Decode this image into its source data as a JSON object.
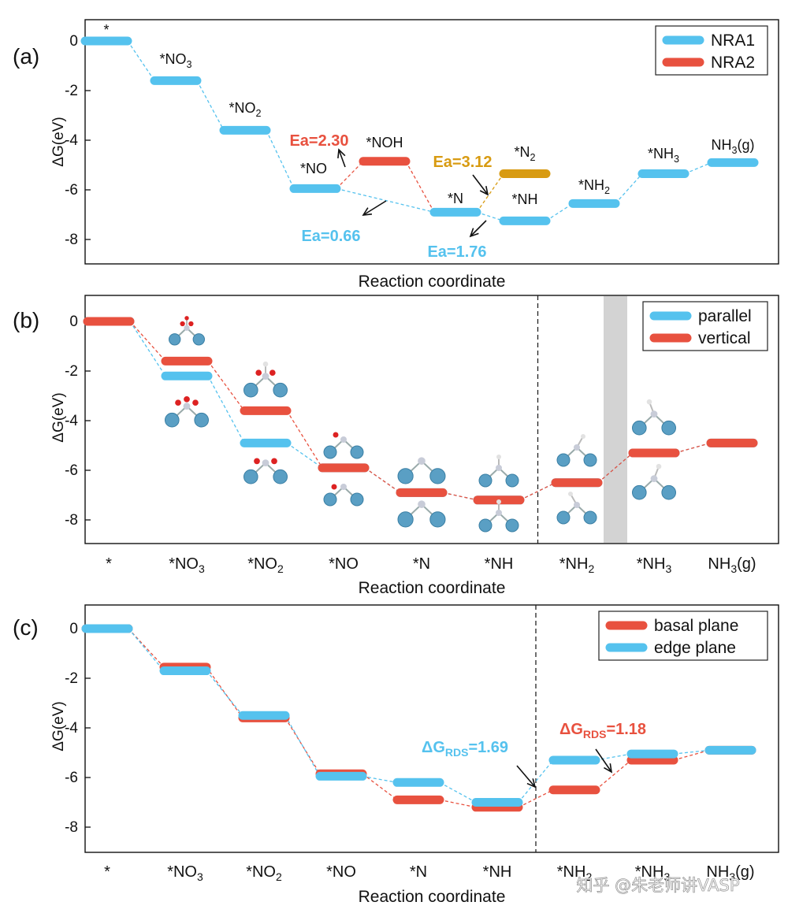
{
  "colors": {
    "blue": "#55c2ee",
    "red": "#e8513f",
    "gold": "#d89b12",
    "axis": "#111111",
    "shade": "#d3d3d3"
  },
  "watermark": "知乎 @朱老师讲VASP",
  "chart_data": [
    {
      "type": "line",
      "panel": "(a)",
      "ylabel": "ΔG(eV)",
      "xlabel": "Reaction coordinate",
      "ylim": [
        -9,
        0.6
      ],
      "yticks": [
        0,
        -2,
        -4,
        -6,
        -8
      ],
      "categories": [
        "*",
        "*NO3",
        "*NO2",
        "*NO",
        "*NOH",
        "*N",
        "*N2",
        "*NH",
        "*NH2",
        "*NH3",
        "NH3(g)"
      ],
      "series": [
        {
          "name": "NRA1",
          "color": "blue",
          "points": [
            [
              0,
              0
            ],
            [
              1,
              -1.6
            ],
            [
              2,
              -3.6
            ],
            [
              3,
              -5.95
            ],
            [
              5,
              -6.9
            ],
            [
              7,
              -7.25
            ],
            [
              8,
              -6.55
            ],
            [
              9,
              -5.35
            ],
            [
              10,
              -4.9
            ]
          ]
        },
        {
          "name": "NRA2",
          "color": "red",
          "points": [
            [
              3,
              -5.95
            ],
            [
              4,
              -4.85
            ],
            [
              5,
              -6.9
            ]
          ]
        },
        {
          "name": "N2",
          "color": "gold",
          "points": [
            [
              5,
              -6.9
            ],
            [
              6,
              -5.35
            ]
          ]
        }
      ],
      "state_labels": [
        {
          "name": "*",
          "main": "*",
          "sub": "",
          "rest": ""
        },
        {
          "name": "*NO3",
          "main": "*NO",
          "sub": "3",
          "rest": ""
        },
        {
          "name": "*NO2",
          "main": "*NO",
          "sub": "2",
          "rest": ""
        },
        {
          "name": "*NO",
          "main": "*NO",
          "sub": "",
          "rest": ""
        },
        {
          "name": "*NOH",
          "main": "*NOH",
          "sub": "",
          "rest": ""
        },
        {
          "name": "*N",
          "main": "*N",
          "sub": "",
          "rest": ""
        },
        {
          "name": "*N2",
          "main": "*N",
          "sub": "2",
          "rest": ""
        },
        {
          "name": "*NH",
          "main": "*NH",
          "sub": "",
          "rest": ""
        },
        {
          "name": "*NH2",
          "main": "*NH",
          "sub": "2",
          "rest": ""
        },
        {
          "name": "*NH3",
          "main": "*NH",
          "sub": "3",
          "rest": ""
        },
        {
          "name": "NH3(g)",
          "main": "NH",
          "sub": "3",
          "rest": "(g)"
        }
      ],
      "annotations": [
        {
          "text": "Ea=2.30",
          "color": "red"
        },
        {
          "text": "Ea=3.12",
          "color": "gold"
        },
        {
          "text": "Ea=0.66",
          "color": "blue"
        },
        {
          "text": "Ea=1.76",
          "color": "blue"
        }
      ],
      "legend": {
        "position": "top-right",
        "items": [
          {
            "label": "NRA1",
            "color": "blue"
          },
          {
            "label": "NRA2",
            "color": "red"
          }
        ]
      }
    },
    {
      "type": "line",
      "panel": "(b)",
      "ylabel": "ΔG(eV)",
      "xlabel": "Reaction coordinate",
      "ylim": [
        -9,
        0.6
      ],
      "yticks": [
        0,
        -2,
        -4,
        -6,
        -8
      ],
      "categories": [
        "*",
        "*NO3",
        "*NO2",
        "*NO",
        "*N",
        "*NH",
        "*NH2",
        "*NH3",
        "NH3(g)"
      ],
      "category_labels": [
        {
          "main": "*",
          "sub": "",
          "rest": ""
        },
        {
          "main": "*NO",
          "sub": "3",
          "rest": ""
        },
        {
          "main": "*NO",
          "sub": "2",
          "rest": ""
        },
        {
          "main": "*NO",
          "sub": "",
          "rest": ""
        },
        {
          "main": "*N",
          "sub": "",
          "rest": ""
        },
        {
          "main": "*NH",
          "sub": "",
          "rest": ""
        },
        {
          "main": "*NH",
          "sub": "2",
          "rest": ""
        },
        {
          "main": "*NH",
          "sub": "3",
          "rest": ""
        },
        {
          "main": "NH",
          "sub": "3",
          "rest": "(g)"
        }
      ],
      "divider_after_index": 5,
      "shaded_between_index": [
        6,
        7
      ],
      "series": [
        {
          "name": "parallel",
          "color": "blue",
          "values": [
            0,
            -2.2,
            -4.9,
            -5.9,
            -6.9,
            -7.2,
            -6.5,
            -5.3,
            -4.9
          ]
        },
        {
          "name": "vertical",
          "color": "red",
          "values": [
            0,
            -1.6,
            -3.6,
            -5.9,
            -6.9,
            -7.2,
            -6.5,
            -5.3,
            -4.9
          ]
        }
      ],
      "legend": {
        "position": "top-right",
        "items": [
          {
            "label": "parallel",
            "color": "blue"
          },
          {
            "label": "vertical",
            "color": "red"
          }
        ]
      }
    },
    {
      "type": "line",
      "panel": "(c)",
      "ylabel": "ΔG(eV)",
      "xlabel": "Reaction coordinate",
      "ylim": [
        -9,
        0.6
      ],
      "yticks": [
        0,
        -2,
        -4,
        -6,
        -8
      ],
      "categories": [
        "*",
        "*NO3",
        "*NO2",
        "*NO",
        "*N",
        "*NH",
        "*NH2",
        "*NH3",
        "NH3(g)"
      ],
      "category_labels": [
        {
          "main": "*",
          "sub": "",
          "rest": ""
        },
        {
          "main": "*NO",
          "sub": "3",
          "rest": ""
        },
        {
          "main": "*NO",
          "sub": "2",
          "rest": ""
        },
        {
          "main": "*NO",
          "sub": "",
          "rest": ""
        },
        {
          "main": "*N",
          "sub": "",
          "rest": ""
        },
        {
          "main": "*NH",
          "sub": "",
          "rest": ""
        },
        {
          "main": "*NH",
          "sub": "2",
          "rest": ""
        },
        {
          "main": "*NH",
          "sub": "3",
          "rest": ""
        },
        {
          "main": "NH",
          "sub": "3",
          "rest": "(g)"
        }
      ],
      "divider_after_index": 5,
      "series": [
        {
          "name": "basal plane",
          "color": "red",
          "values": [
            0,
            -1.55,
            -3.6,
            -5.85,
            -6.9,
            -7.2,
            -6.5,
            -5.3,
            -4.9
          ]
        },
        {
          "name": "edge plane",
          "color": "blue",
          "values": [
            0,
            -1.7,
            -3.5,
            -5.95,
            -6.2,
            -7.0,
            -5.3,
            -5.05,
            -4.9
          ]
        }
      ],
      "annotations": [
        {
          "main": "ΔG",
          "sub": "RDS",
          "rest": "=1.69",
          "color": "blue"
        },
        {
          "main": "ΔG",
          "sub": "RDS",
          "rest": "=1.18",
          "color": "red"
        }
      ],
      "legend": {
        "position": "top-right",
        "items": [
          {
            "label": "basal plane",
            "color": "red"
          },
          {
            "label": "edge plane",
            "color": "blue"
          }
        ]
      }
    }
  ]
}
